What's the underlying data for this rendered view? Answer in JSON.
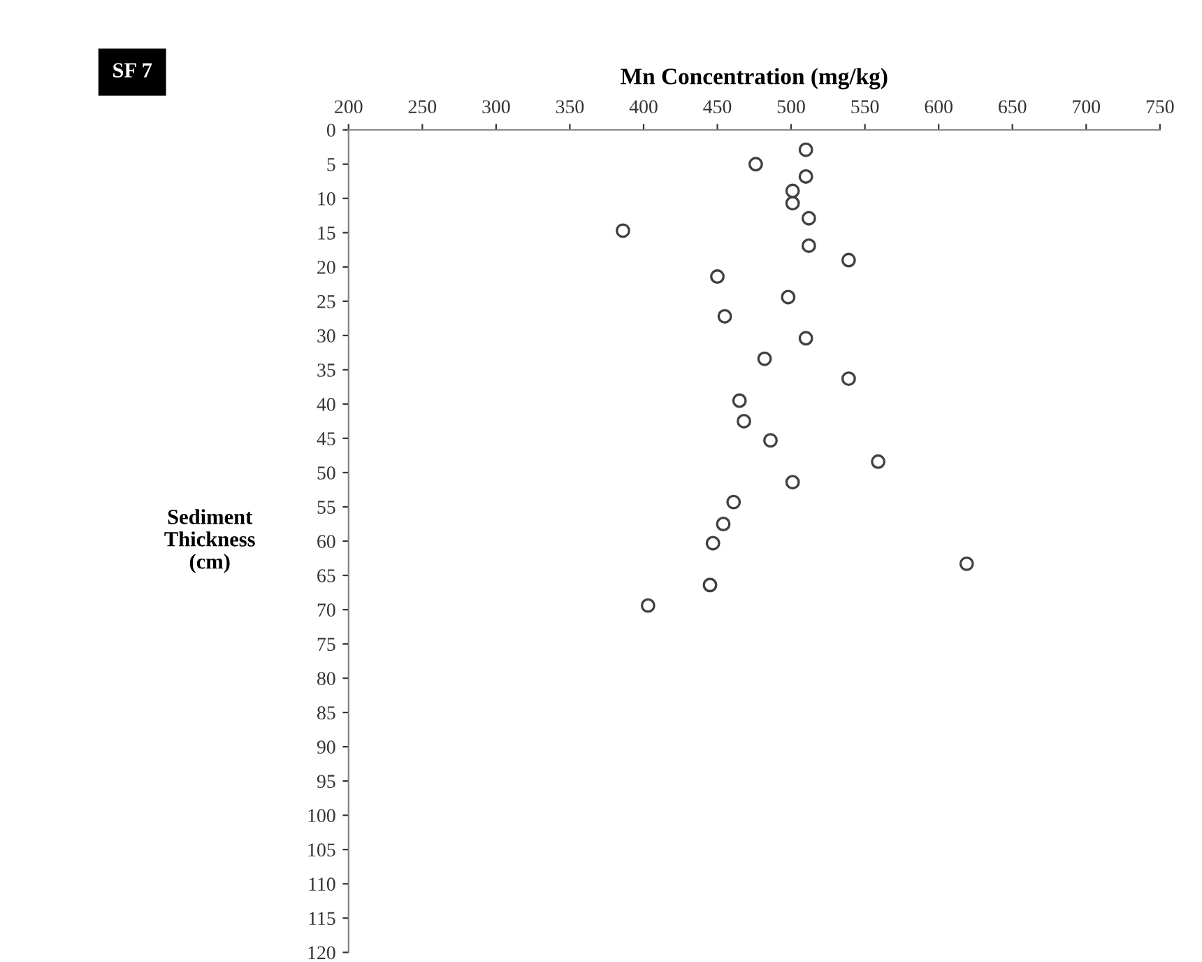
{
  "chart_data": {
    "type": "scatter",
    "title": "SF 7",
    "xlabel": "Mn Concentration (mg/kg)",
    "ylabel": "Sediment\nThickness\n(cm)",
    "x": [
      510,
      476,
      510,
      501,
      501,
      512,
      386,
      512,
      539,
      450,
      498,
      455,
      510,
      482,
      539,
      465,
      468,
      486,
      559,
      501,
      461,
      454,
      447,
      619,
      445,
      403
    ],
    "values": [
      2.9,
      5.0,
      6.8,
      8.9,
      10.7,
      12.9,
      14.7,
      16.9,
      19.0,
      21.4,
      24.4,
      27.2,
      30.4,
      33.4,
      36.3,
      39.5,
      42.5,
      45.3,
      48.4,
      51.4,
      54.3,
      57.5,
      60.3,
      63.3,
      66.4,
      69.4
    ],
    "color": "#404040",
    "marker": "circle",
    "grid": false,
    "xlim": [
      200,
      750
    ],
    "xticks": [
      200,
      250,
      300,
      350,
      400,
      450,
      500,
      550,
      600,
      650,
      700,
      750
    ],
    "ylim": [
      120,
      0
    ],
    "yticks": [
      0,
      5,
      10,
      15,
      20,
      25,
      30,
      35,
      40,
      45,
      50,
      55,
      60,
      65,
      70,
      75,
      80,
      85,
      90,
      95,
      100,
      105,
      110,
      115,
      120
    ]
  }
}
